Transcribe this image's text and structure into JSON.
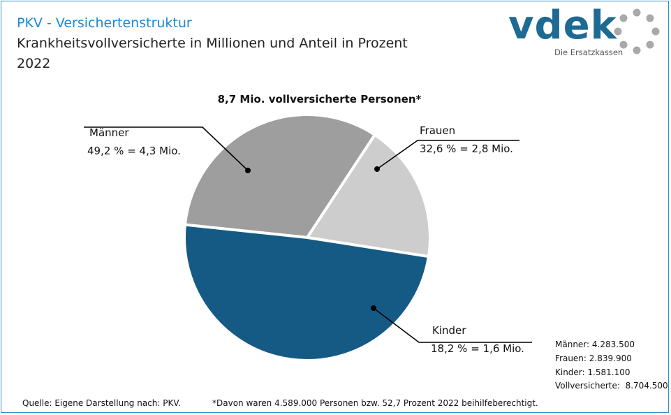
{
  "header": {
    "title": "PKV - Versichertenstruktur",
    "subtitle": "Krankheitsvollversicherte in Millionen und Anteil in Prozent",
    "year": "2022"
  },
  "logo": {
    "word": "vdek",
    "tagline": "Die Ersatzkassen"
  },
  "chart_data": {
    "type": "pie",
    "title": "8,7 Mio. vollversicherte Personen*",
    "slices": [
      {
        "name": "Frauen",
        "percent": 32.6,
        "label_name": "Frauen",
        "label_value": "32,6 % = 2,8 Mio.",
        "color": "#9e9e9e"
      },
      {
        "name": "Kinder",
        "percent": 18.2,
        "label_name": "Kinder",
        "label_value": "18,2 % = 1,6 Mio.",
        "color": "#cdcdcd"
      },
      {
        "name": "Männer",
        "percent": 49.2,
        "label_name": "Männer",
        "label_value": "49,2 % = 4,3 Mio.",
        "color": "#155a85"
      }
    ],
    "absolute": [
      {
        "label": "Männer:",
        "value": "4.283.500"
      },
      {
        "label": "Frauen:",
        "value": "2.839.900"
      },
      {
        "label": "Kinder:",
        "value": "1.581.100"
      },
      {
        "label": "Vollversicherte:",
        "value": "8.704.500"
      }
    ]
  },
  "footer": {
    "source": "Quelle: Eigene Darstellung nach: PKV.",
    "note": "*Davon waren 4.589.000 Personen bzw. 52,7 Prozent 2022 beihilfeberechtigt."
  }
}
